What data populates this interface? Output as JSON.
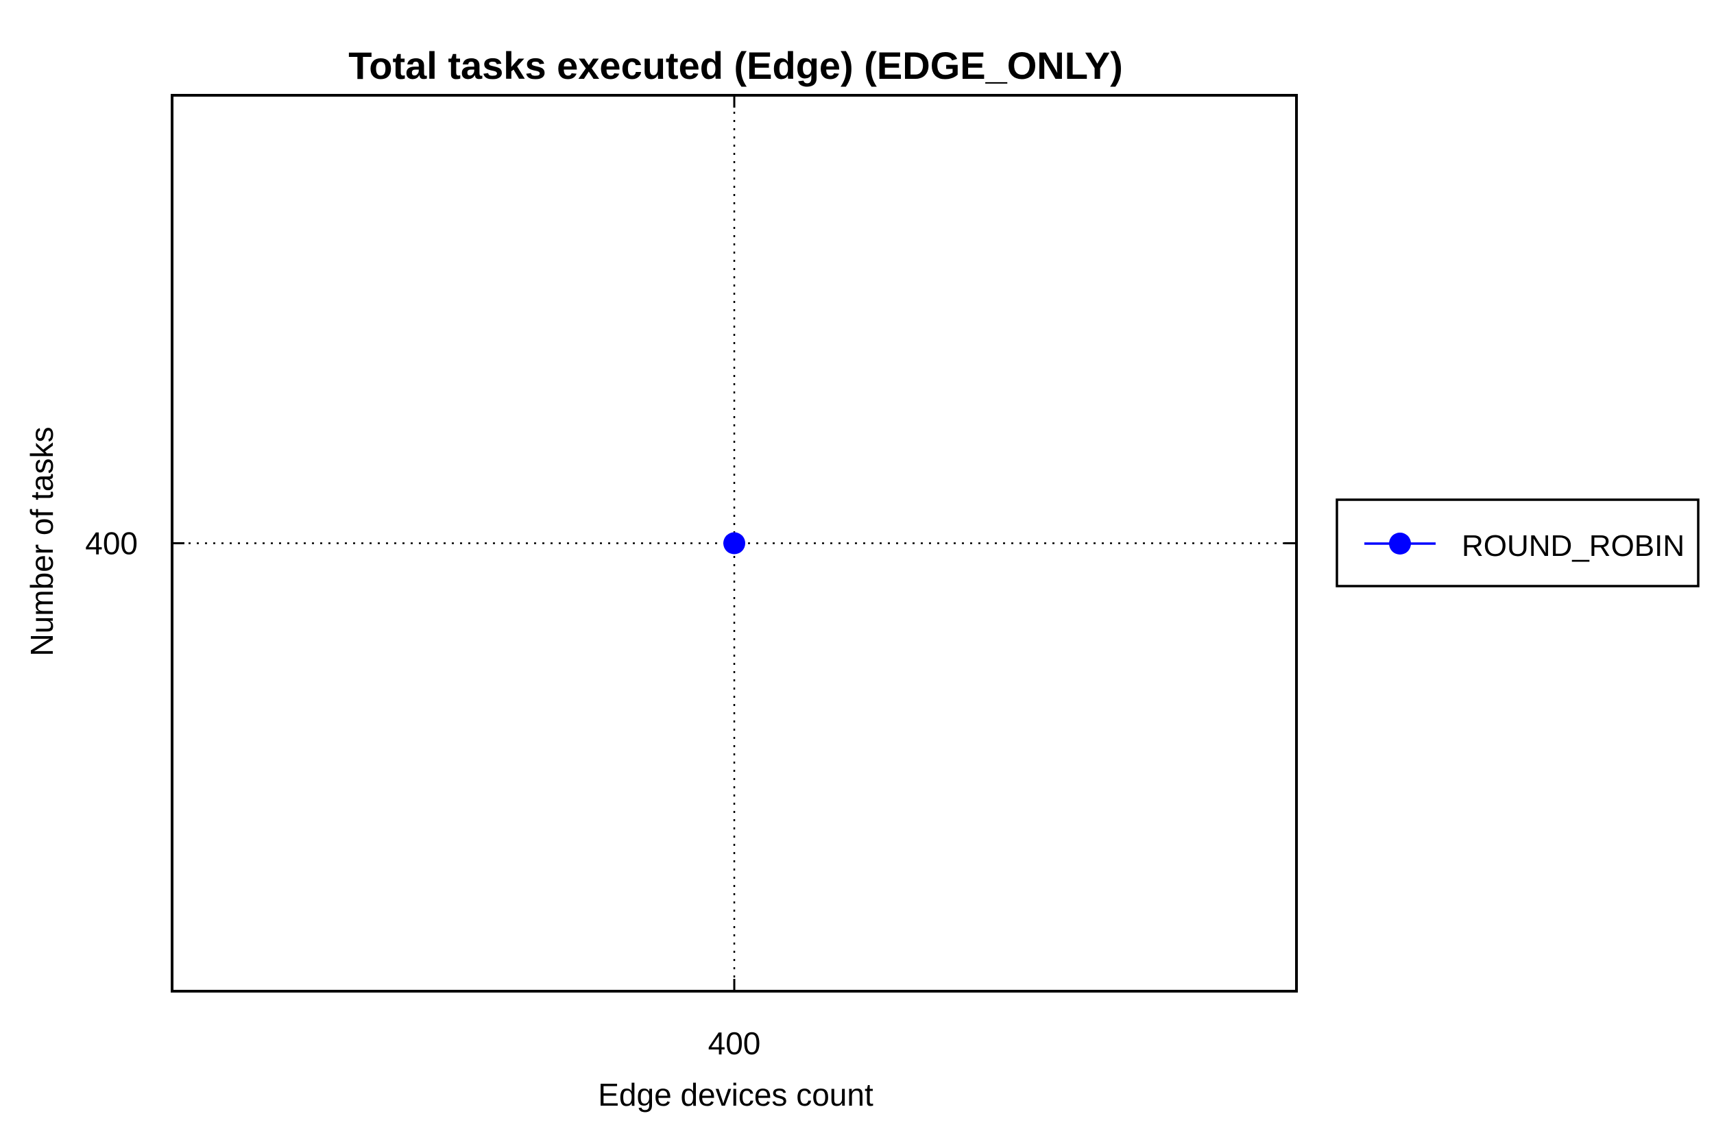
{
  "chart_data": {
    "type": "line",
    "title": "Total tasks executed (Edge) (EDGE_ONLY)",
    "xlabel": "Edge devices count",
    "ylabel": "Number of tasks",
    "x_ticks": [
      "400"
    ],
    "y_ticks": [
      "400"
    ],
    "xlim": [
      300,
      500
    ],
    "ylim": [
      300,
      500
    ],
    "grid": true,
    "legend_position": "outside-right",
    "series": [
      {
        "name": "ROUND_ROBIN",
        "color": "#0000ff",
        "marker": "circle",
        "points": [
          {
            "x": 400,
            "y": 400
          }
        ]
      }
    ]
  }
}
